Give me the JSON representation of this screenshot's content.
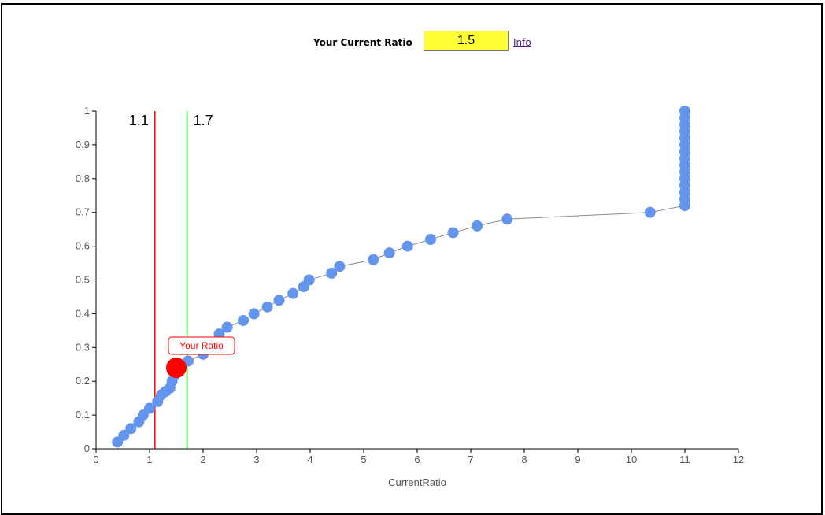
{
  "controls": {
    "ratio_label": "Your Current Ratio",
    "ratio_value": "1.5",
    "info_label": "Info"
  },
  "colors": {
    "points": "#6495ed",
    "line": "#888888",
    "low_threshold": "#ff0000",
    "high_threshold": "#00cc00",
    "your_ratio": "#ff0000",
    "input_bg": "#ffff33"
  },
  "chart_data": {
    "type": "scatter",
    "xlabel": "CurrentRatio",
    "ylabel": "",
    "xlim": [
      0,
      12
    ],
    "ylim": [
      0,
      1
    ],
    "xticks": [
      0,
      1,
      2,
      3,
      4,
      5,
      6,
      7,
      8,
      9,
      10,
      11,
      12
    ],
    "yticks": [
      0,
      0.1,
      0.2,
      0.3,
      0.4,
      0.5,
      0.6,
      0.7,
      0.8,
      0.9,
      1
    ],
    "grid": false,
    "series": [
      {
        "points": [
          [
            0.4,
            0.02
          ],
          [
            0.52,
            0.04
          ],
          [
            0.65,
            0.06
          ],
          [
            0.8,
            0.08
          ],
          [
            0.88,
            0.1
          ],
          [
            1.0,
            0.12
          ],
          [
            1.15,
            0.14
          ],
          [
            1.22,
            0.16
          ],
          [
            1.3,
            0.17
          ],
          [
            1.38,
            0.18
          ],
          [
            1.42,
            0.2
          ],
          [
            1.48,
            0.22
          ],
          [
            1.55,
            0.24
          ],
          [
            1.72,
            0.26
          ],
          [
            2.0,
            0.28
          ],
          [
            2.3,
            0.34
          ],
          [
            2.45,
            0.36
          ],
          [
            2.75,
            0.38
          ],
          [
            2.95,
            0.4
          ],
          [
            3.2,
            0.42
          ],
          [
            3.42,
            0.44
          ],
          [
            3.68,
            0.46
          ],
          [
            3.88,
            0.48
          ],
          [
            3.98,
            0.5
          ],
          [
            4.4,
            0.52
          ],
          [
            4.55,
            0.54
          ],
          [
            5.18,
            0.56
          ],
          [
            5.48,
            0.58
          ],
          [
            5.82,
            0.6
          ],
          [
            6.25,
            0.62
          ],
          [
            6.67,
            0.64
          ],
          [
            7.12,
            0.66
          ],
          [
            7.68,
            0.68
          ],
          [
            10.35,
            0.7
          ],
          [
            11.0,
            0.72
          ],
          [
            11.0,
            0.74
          ],
          [
            11.0,
            0.76
          ],
          [
            11.0,
            0.78
          ],
          [
            11.0,
            0.8
          ],
          [
            11.0,
            0.82
          ],
          [
            11.0,
            0.84
          ],
          [
            11.0,
            0.86
          ],
          [
            11.0,
            0.88
          ],
          [
            11.0,
            0.9
          ],
          [
            11.0,
            0.92
          ],
          [
            11.0,
            0.94
          ],
          [
            11.0,
            0.96
          ],
          [
            11.0,
            0.98
          ],
          [
            11.0,
            1.0
          ]
        ]
      }
    ],
    "thresholds": [
      {
        "x": 1.1,
        "label": "1.1",
        "color": "#ff0000"
      },
      {
        "x": 1.7,
        "label": "1.7",
        "color": "#00cc00"
      }
    ],
    "highlight": {
      "x": 1.5,
      "y": 0.24,
      "label": "Your Ratio"
    }
  }
}
